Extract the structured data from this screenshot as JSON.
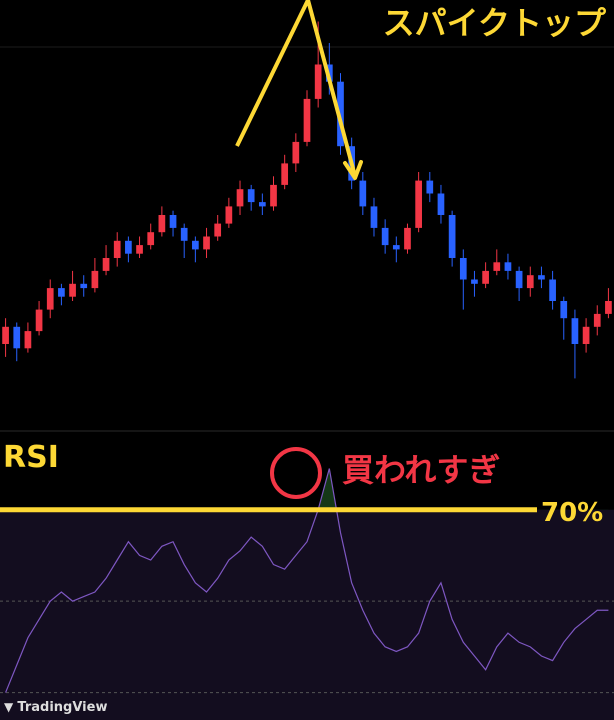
{
  "chart_data": [
    {
      "type": "candlestick",
      "annotation": "スパイクトップ",
      "up_color": "#f23645",
      "down_color": "#2962ff",
      "ylim": [
        0,
        100
      ],
      "open": [
        20,
        24,
        19,
        23,
        28,
        33,
        31,
        34,
        33,
        37,
        40,
        44,
        41,
        43,
        46,
        50,
        47,
        44,
        42,
        45,
        48,
        52,
        56,
        53,
        52,
        57,
        62,
        67,
        77,
        85,
        81,
        66,
        58,
        52,
        47,
        43,
        42,
        47,
        58,
        55,
        50,
        40,
        35,
        34,
        37,
        39,
        37,
        33,
        36,
        35,
        30,
        26,
        20,
        24,
        27
      ],
      "high": [
        26,
        25,
        25,
        30,
        35,
        34,
        37,
        36,
        40,
        43,
        46,
        45,
        45,
        48,
        52,
        51,
        48,
        45,
        47,
        50,
        54,
        58,
        57,
        55,
        59,
        64,
        69,
        79,
        95,
        90,
        83,
        68,
        60,
        54,
        49,
        45,
        48,
        60,
        60,
        57,
        51,
        42,
        37,
        39,
        42,
        41,
        38,
        38,
        38,
        37,
        31,
        28,
        26,
        29,
        33
      ],
      "low": [
        17,
        16,
        18,
        22,
        26,
        29,
        30,
        31,
        32,
        36,
        38,
        39,
        40,
        42,
        45,
        45,
        40,
        39,
        40,
        44,
        47,
        50,
        51,
        50,
        51,
        56,
        60,
        66,
        75,
        78,
        64,
        56,
        50,
        45,
        41,
        39,
        41,
        46,
        53,
        48,
        38,
        28,
        31,
        33,
        36,
        35,
        30,
        31,
        33,
        28,
        21,
        12,
        18,
        22,
        26
      ],
      "close": [
        24,
        19,
        23,
        28,
        33,
        31,
        34,
        33,
        37,
        40,
        44,
        41,
        43,
        46,
        50,
        47,
        44,
        42,
        45,
        48,
        52,
        56,
        53,
        52,
        57,
        62,
        67,
        77,
        85,
        81,
        66,
        58,
        52,
        47,
        43,
        42,
        47,
        58,
        55,
        50,
        40,
        35,
        34,
        37,
        39,
        37,
        33,
        36,
        35,
        30,
        26,
        20,
        24,
        27,
        30
      ]
    },
    {
      "type": "line",
      "title": "RSI",
      "annotation": "買われすぎ",
      "color": "#7e57c2",
      "ylim": [
        24,
        87
      ],
      "threshold": {
        "value": 70,
        "label": "70%"
      },
      "hlines": [
        50,
        30
      ],
      "values": [
        30,
        36,
        42,
        46,
        50,
        52,
        50,
        51,
        52,
        55,
        59,
        63,
        60,
        59,
        62,
        63,
        58,
        54,
        52,
        55,
        59,
        61,
        64,
        62,
        58,
        57,
        60,
        63,
        70,
        79,
        65,
        54,
        48,
        43,
        40,
        39,
        40,
        43,
        50,
        54,
        46,
        41,
        38,
        35,
        40,
        43,
        41,
        40,
        38,
        37,
        41,
        44,
        46,
        48,
        48
      ]
    }
  ],
  "watermark": "TradingView"
}
